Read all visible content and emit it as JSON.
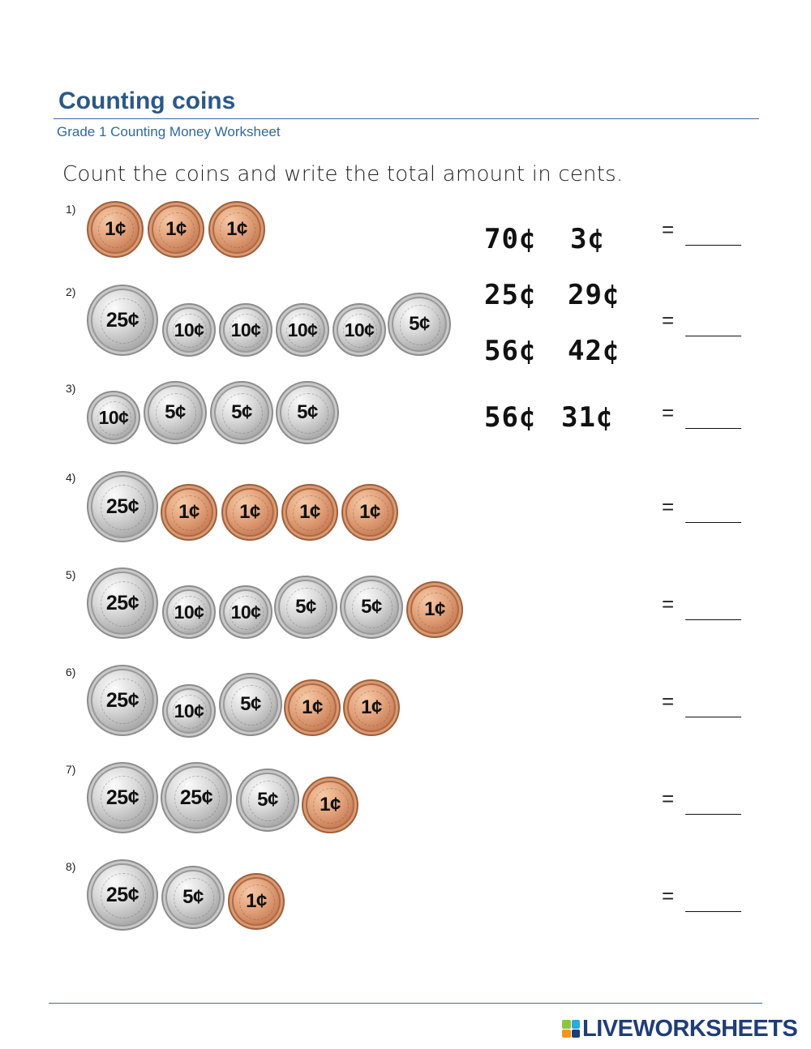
{
  "header": {
    "title": "Counting coins",
    "subtitle": "Grade 1 Counting Money Worksheet"
  },
  "instruction": "Count the coins and write the total amount in cents.",
  "coin_types": {
    "penny": {
      "label": "1¢",
      "color": "#c67a52"
    },
    "nickel": {
      "label": "5¢",
      "color": "#b5b5b5"
    },
    "dime": {
      "label": "10¢",
      "color": "#b5b5b5"
    },
    "quarter": {
      "label": "25¢",
      "color": "#b5b5b5"
    }
  },
  "questions": [
    {
      "number": "1)",
      "coins": [
        "1¢",
        "1¢",
        "1¢"
      ],
      "equals": "="
    },
    {
      "number": "2)",
      "coins": [
        "25¢",
        "10¢",
        "10¢",
        "10¢",
        "10¢",
        "5¢"
      ],
      "equals": "="
    },
    {
      "number": "3)",
      "coins": [
        "10¢",
        "5¢",
        "5¢",
        "5¢"
      ],
      "equals": "="
    },
    {
      "number": "4)",
      "coins": [
        "25¢",
        "1¢",
        "1¢",
        "1¢",
        "1¢"
      ],
      "equals": "="
    },
    {
      "number": "5)",
      "coins": [
        "25¢",
        "10¢",
        "10¢",
        "5¢",
        "5¢",
        "1¢"
      ],
      "equals": "="
    },
    {
      "number": "6)",
      "coins": [
        "25¢",
        "10¢",
        "5¢",
        "1¢",
        "1¢"
      ],
      "equals": "="
    },
    {
      "number": "7)",
      "coins": [
        "25¢",
        "25¢",
        "5¢",
        "1¢"
      ],
      "equals": "="
    },
    {
      "number": "8)",
      "coins": [
        "25¢",
        "5¢",
        "1¢"
      ],
      "equals": "="
    }
  ],
  "answer_choices": [
    "70¢",
    "3¢",
    "25¢",
    "29¢",
    "56¢",
    "42¢",
    "56¢",
    "31¢"
  ],
  "footer": {
    "logo_text": "LIVEWORKSHEETS",
    "logo_colors": [
      "#8cc63f",
      "#29abe2",
      "#f7931e",
      "#1f3d78"
    ]
  }
}
